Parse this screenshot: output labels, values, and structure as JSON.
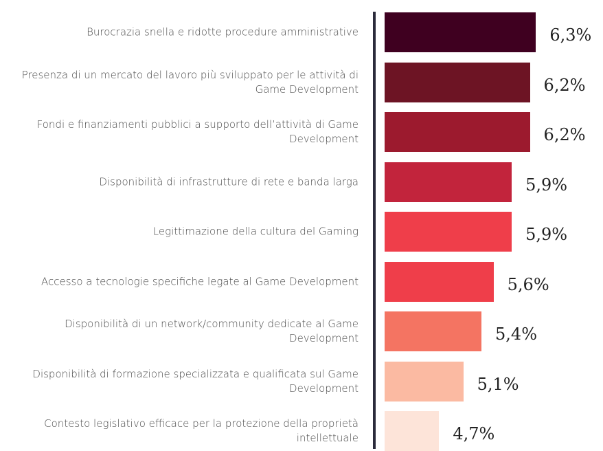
{
  "chart_data": {
    "type": "bar",
    "orientation": "horizontal",
    "categories": [
      "Burocrazia snella e ridotte procedure amministrative",
      "Presenza di un mercato del lavoro più sviluppato per le attività di Game Development",
      "Fondi e finanziamenti pubblici a supporto dell’attività di Game Development",
      "Disponibilità di infrastrutture di rete e banda larga",
      "Legittimazione della cultura del Gaming",
      "Accesso a tecnologie specifiche legate al Game Development",
      "Disponibilità di un network/community dedicate al Game Development",
      "Disponibilità di formazione specializzata e qualificata sul Game Development",
      "Contesto legislativo efficace per la protezione della proprietà intellettuale"
    ],
    "values": [
      6.3,
      6.2,
      6.2,
      5.9,
      5.9,
      5.6,
      5.4,
      5.1,
      4.7
    ],
    "value_labels": [
      "6,3%",
      "6,2%",
      "6,2%",
      "5,9%",
      "5,9%",
      "5,6%",
      "5,4%",
      "5,1%",
      "4,7%"
    ],
    "colors": [
      "#3f0020",
      "#6d1424",
      "#9c1a2e",
      "#c2243c",
      "#ef3e4a",
      "#ef3e4a",
      "#f47462",
      "#fbbaa2",
      "#fde4d9"
    ],
    "xlim": [
      3.8,
      6.5
    ]
  }
}
